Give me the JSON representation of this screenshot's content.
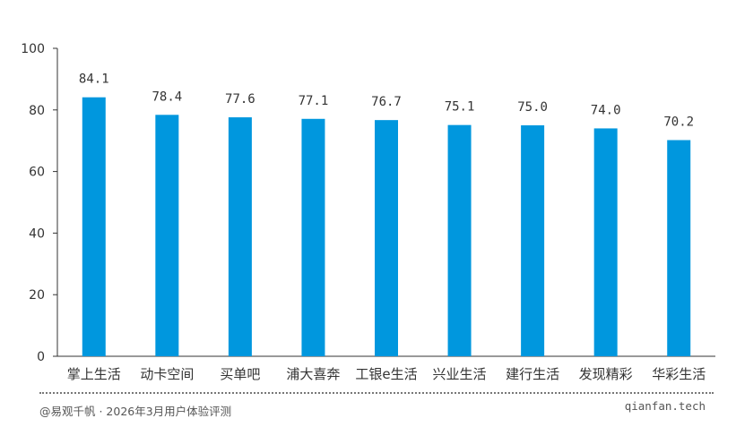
{
  "chart_data": {
    "type": "bar",
    "categories": [
      "掌上生活",
      "动卡空间",
      "买单吧",
      "浦大喜奔",
      "工银e生活",
      "兴业生活",
      "建行生活",
      "发现精彩",
      "华彩生活"
    ],
    "values": [
      84.1,
      78.4,
      77.6,
      77.1,
      76.7,
      75.1,
      75.0,
      74.0,
      70.2
    ],
    "value_labels": [
      "84.1",
      "78.4",
      "77.6",
      "77.1",
      "76.7",
      "75.1",
      "75.0",
      "74.0",
      "70.2"
    ],
    "ylim": [
      0,
      100
    ],
    "yticks": [
      0,
      20,
      40,
      60,
      80,
      100
    ],
    "grid": false,
    "bar_color": "#0097DE"
  },
  "footer": {
    "source": "@易观千帆 · 2026年3月用户体验评测",
    "site": "qianfan.tech"
  }
}
